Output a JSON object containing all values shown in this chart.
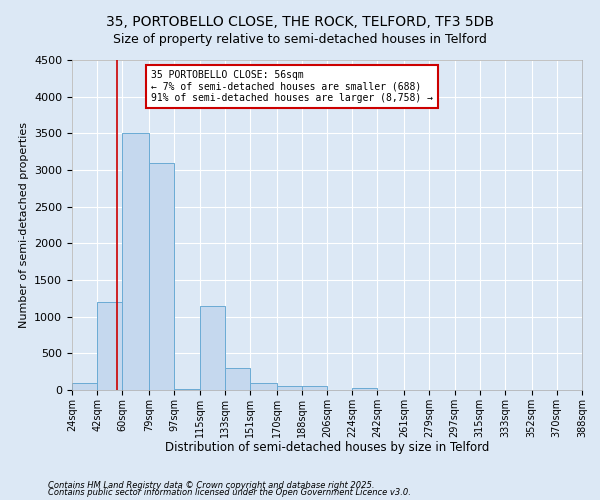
{
  "title": "35, PORTOBELLO CLOSE, THE ROCK, TELFORD, TF3 5DB",
  "subtitle": "Size of property relative to semi-detached houses in Telford",
  "xlabel": "Distribution of semi-detached houses by size in Telford",
  "ylabel": "Number of semi-detached properties",
  "bin_edges": [
    24,
    42,
    60,
    79,
    97,
    115,
    133,
    151,
    170,
    188,
    206,
    224,
    242,
    261,
    279,
    297,
    315,
    333,
    352,
    370,
    388
  ],
  "bar_heights": [
    100,
    1200,
    3500,
    3100,
    20,
    1150,
    300,
    100,
    50,
    50,
    0,
    30,
    0,
    0,
    0,
    0,
    0,
    0,
    0,
    0
  ],
  "bar_color": "#c5d8ee",
  "bar_edgecolor": "#6aaad4",
  "property_size": 56,
  "vline_color": "#cc0000",
  "ylim": [
    0,
    4500
  ],
  "annotation_title": "35 PORTOBELLO CLOSE: 56sqm",
  "annotation_line2": "← 7% of semi-detached houses are smaller (688)",
  "annotation_line3": "91% of semi-detached houses are larger (8,758) →",
  "annotation_box_color": "#cc0000",
  "annotation_fill": "#ffffff",
  "footnote1": "Contains HM Land Registry data © Crown copyright and database right 2025.",
  "footnote2": "Contains public sector information licensed under the Open Government Licence v3.0.",
  "bg_color": "#dce8f5",
  "title_fontsize": 10,
  "subtitle_fontsize": 9,
  "tick_label_fontsize": 7,
  "ylabel_fontsize": 8,
  "xlabel_fontsize": 8.5
}
